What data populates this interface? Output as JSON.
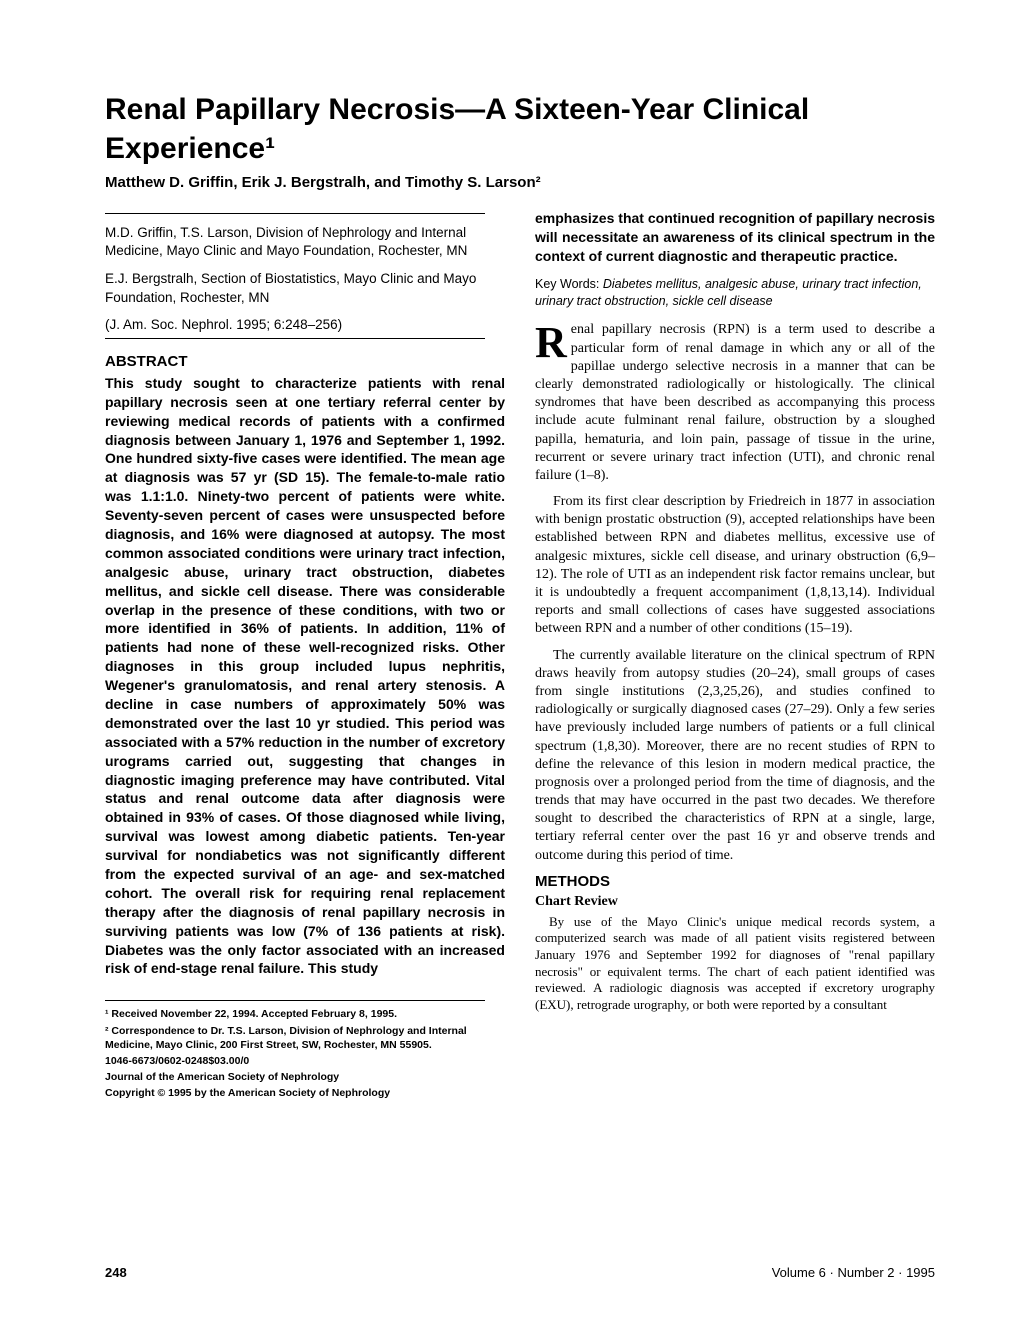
{
  "title": "Renal Papillary Necrosis—A Sixteen-Year Clinical Experience¹",
  "authors": "Matthew D. Griffin, Erik J. Bergstralh, and Timothy S. Larson²",
  "affil1": "M.D. Griffin, T.S. Larson, Division of Nephrology and Internal Medicine, Mayo Clinic and Mayo Foundation, Rochester, MN",
  "affil2": "E.J. Bergstralh, Section of Biostatistics, Mayo Clinic and Mayo Foundation, Rochester, MN",
  "journal_ref": "(J. Am. Soc. Nephrol. 1995; 6:248–256)",
  "abstract_heading": "ABSTRACT",
  "abstract_text": "This study sought to characterize patients with renal papillary necrosis seen at one tertiary referral center by reviewing medical records of patients with a confirmed diagnosis between January 1, 1976 and September 1, 1992. One hundred sixty-five cases were identified. The mean age at diagnosis was 57 yr (SD 15). The female-to-male ratio was 1.1:1.0. Ninety-two percent of patients were white. Seventy-seven percent of cases were unsuspected before diagnosis, and 16% were diagnosed at autopsy. The most common associated conditions were urinary tract infection, analgesic abuse, urinary tract obstruction, diabetes mellitus, and sickle cell disease. There was considerable overlap in the presence of these conditions, with two or more identified in 36% of patients. In addition, 11% of patients had none of these well-recognized risks. Other diagnoses in this group included lupus nephritis, Wegener's granulomatosis, and renal artery stenosis. A decline in case numbers of approximately 50% was demonstrated over the last 10 yr studied. This period was associated with a 57% reduction in the number of excretory urograms carried out, suggesting that changes in diagnostic imaging preference may have contributed. Vital status and renal outcome data after diagnosis were obtained in 93% of cases. Of those diagnosed while living, survival was lowest among diabetic patients. Ten-year survival for nondiabetics was not significantly different from the expected survival of an age- and sex-matched cohort. The overall risk for requiring renal replacement therapy after the diagnosis of renal papillary necrosis in surviving patients was low (7% of 136 patients at risk). Diabetes was the only factor associated with an increased risk of end-stage renal failure. This study",
  "right_intro": "emphasizes that continued recognition of papillary necrosis will necessitate an awareness of its clinical spectrum in the context of current diagnostic and therapeutic practice.",
  "keywords_label": "Key Words: ",
  "keywords_text": "Diabetes mellitus, analgesic abuse, urinary tract infection, urinary tract obstruction, sickle cell disease",
  "dropcap_letter": "R",
  "para1_rest": "enal papillary necrosis (RPN) is a term used to describe a particular form of renal damage in which any or all of the papillae undergo selective necrosis in a manner that can be clearly demonstrated radiologically or histologically. The clinical syndromes that have been described as accompanying this process include acute fulminant renal failure, obstruction by a sloughed papilla, hematuria, and loin pain, passage of tissue in the urine, recurrent or severe urinary tract infection (UTI), and chronic renal failure (1–8).",
  "para2": "From its first clear description by Friedreich in 1877 in association with benign prostatic obstruction (9), accepted relationships have been established between RPN and diabetes mellitus, excessive use of analgesic mixtures, sickle cell disease, and urinary obstruction (6,9–12). The role of UTI as an independent risk factor remains unclear, but it is undoubtedly a frequent accompaniment (1,8,13,14). Individual reports and small collections of cases have suggested associations between RPN and a number of other conditions (15–19).",
  "para3": "The currently available literature on the clinical spectrum of RPN draws heavily from autopsy studies (20–24), small groups of cases from single institutions (2,3,25,26), and studies confined to radiologically or surgically diagnosed cases (27–29). Only a few series have previously included large numbers of patients or a full clinical spectrum (1,8,30). Moreover, there are no recent studies of RPN to define the relevance of this lesion in modern medical practice, the prognosis over a prolonged period from the time of diagnosis, and the trends that may have occurred in the past two decades. We therefore sought to described the characteristics of RPN at a single, large, tertiary referral center over the past 16 yr and observe trends and outcome during this period of time.",
  "methods_heading": "METHODS",
  "chart_review_heading": "Chart Review",
  "methods_para": "By use of the Mayo Clinic's unique medical records system, a computerized search was made of all patient visits registered between January 1976 and September 1992 for diagnoses of \"renal papillary necrosis\" or equivalent terms. The chart of each patient identified was reviewed. A radiologic diagnosis was accepted if excretory urography (EXU), retrograde urography, or both were reported by a consultant",
  "footnote1": "¹ Received November 22, 1994. Accepted February 8, 1995.",
  "footnote2": "² Correspondence to Dr. T.S. Larson, Division of Nephrology and Internal Medicine, Mayo Clinic, 200 First Street, SW, Rochester, MN 55905.",
  "footnote3": "1046-6673/0602-0248$03.00/0",
  "footnote4": "Journal of the American Society of Nephrology",
  "footnote5": "Copyright © 1995 by the American Society of Nephrology",
  "page_number": "248",
  "volume_info": "Volume 6 · Number 2 · 1995"
}
